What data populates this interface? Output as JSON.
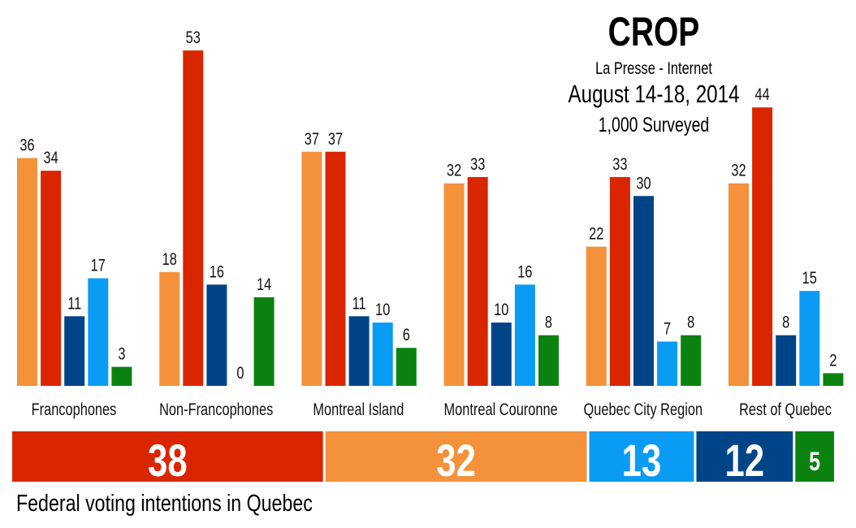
{
  "header": {
    "pollster": "CROP",
    "source": "La Presse - Internet",
    "dates": "August 14-18, 2014",
    "sample": "1,000 Surveyed"
  },
  "footer_title": "Federal voting intentions in Quebec",
  "chart_data": [
    {
      "type": "bar",
      "categories": [
        "Francophones",
        "Non-Francophones",
        "Montreal Island",
        "Montreal Couronne",
        "Quebec City Region",
        "Rest of Quebec"
      ],
      "series": [
        {
          "color": "#F4913B",
          "values": [
            36,
            18,
            37,
            32,
            22,
            32
          ]
        },
        {
          "color": "#D92600",
          "values": [
            34,
            53,
            37,
            33,
            33,
            44
          ]
        },
        {
          "color": "#004488",
          "values": [
            11,
            16,
            11,
            10,
            30,
            8
          ]
        },
        {
          "color": "#0A9BF5",
          "values": [
            17,
            0,
            10,
            16,
            7,
            15
          ]
        },
        {
          "color": "#0B820F",
          "values": [
            3,
            14,
            6,
            8,
            8,
            2
          ]
        }
      ],
      "ylim": [
        0,
        55
      ],
      "grid": false,
      "data_labels": true
    },
    {
      "type": "bar",
      "orientation": "stacked-horizontal",
      "segments": [
        {
          "value": 38,
          "color": "#D92600"
        },
        {
          "value": 32,
          "color": "#F4913B"
        },
        {
          "value": 13,
          "color": "#0A9BF5"
        },
        {
          "value": 12,
          "color": "#004488"
        },
        {
          "value": 5,
          "color": "#0B820F"
        }
      ]
    }
  ]
}
